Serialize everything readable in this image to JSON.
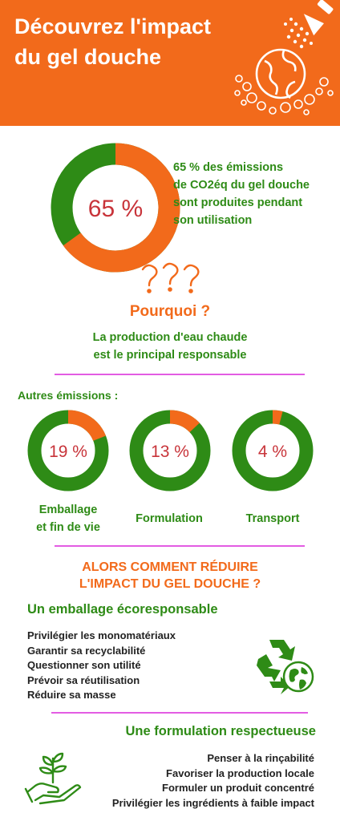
{
  "header": {
    "title_line1": "Découvrez l'impact",
    "title_line2": "du gel douche",
    "bg_color": "#f26a1b"
  },
  "main_share": {
    "percent_label": "65 %",
    "value": 65,
    "text_lines": [
      "65 % des émissions",
      "de CO2éq du gel douche",
      "sont produites pendant",
      "son utilisation"
    ]
  },
  "pourquoi": {
    "icon": "question-marks-icon",
    "title": "Pourquoi ?",
    "text_lines": [
      "La production d'eau chaude",
      "est le principal responsable"
    ]
  },
  "autres": {
    "title": "Autres émissions :",
    "items": [
      {
        "label": "19 %",
        "value": 19,
        "caption_lines": [
          "Emballage",
          "et fin de vie"
        ]
      },
      {
        "label": "13 %",
        "value": 13,
        "caption_lines": [
          "Formulation"
        ]
      },
      {
        "label": "4 %",
        "value": 4,
        "caption_lines": [
          "Transport"
        ]
      }
    ]
  },
  "alors": {
    "lines": [
      "ALORS COMMENT RÉDUIRE",
      "L'IMPACT DU GEL DOUCHE ?"
    ]
  },
  "emballage": {
    "title": "Un emballage écoresponsable",
    "icon": "recycle-globe-icon",
    "items": [
      "Privilégier les monomatériaux",
      "Garantir sa recyclabilité",
      "Questionner son utilité",
      "Prévoir sa réutilisation",
      "Réduire sa masse"
    ]
  },
  "formulation": {
    "title": "Une formulation respectueuse",
    "icon": "plant-hand-icon",
    "items": [
      "Penser à la rinçabilité",
      "Favoriser la production locale",
      "Formuler un produit concentré",
      "Privilégier les ingrédients à faible impact"
    ]
  },
  "colors": {
    "orange": "#f26a1b",
    "green": "#2e8b16",
    "red_text": "#c8343a",
    "divider": "#e35ce3"
  }
}
